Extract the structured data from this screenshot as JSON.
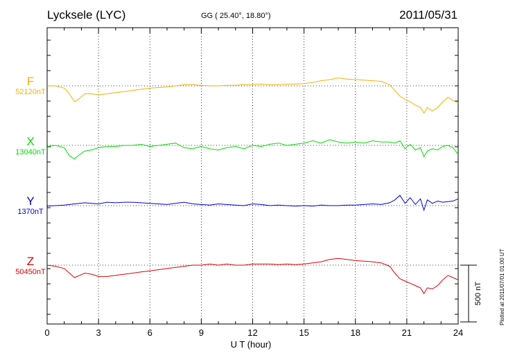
{
  "header": {
    "station": "Lycksele (LYC)",
    "coords": "GG ( 25.40°,  18.80°)",
    "date": "2011/05/31"
  },
  "footer": {
    "plotted": "Plotted at 2011/07/01 01:00 UT"
  },
  "chart_data": {
    "type": "line",
    "xlabel": "U T (hour)",
    "xlim": [
      0,
      24
    ],
    "xticks": [
      0,
      3,
      6,
      9,
      12,
      15,
      18,
      21,
      24
    ],
    "scale_bar_label": "500 nT",
    "scale_bar_nT": 500,
    "grid": true,
    "series": [
      {
        "name": "F",
        "baseline_label": "52120nT",
        "baseline_nT": 52120,
        "color": "#f5b000",
        "x": [
          0,
          0.5,
          1,
          1.3,
          1.6,
          1.9,
          2.2,
          2.6,
          3,
          3.5,
          4,
          4.5,
          5,
          5.5,
          6,
          6.5,
          7,
          7.5,
          8,
          8.5,
          9,
          9.5,
          10,
          10.5,
          11,
          11.5,
          12,
          12.5,
          13,
          13.5,
          14,
          14.5,
          15,
          15.5,
          16,
          16.5,
          17,
          17.5,
          18,
          18.5,
          19,
          19.5,
          20,
          20.3,
          20.6,
          20.9,
          21.2,
          21.5,
          21.8,
          22,
          22.2,
          22.5,
          22.8,
          23.1,
          23.4,
          23.7,
          24
        ],
        "y": [
          52120,
          52120,
          52100,
          52050,
          51980,
          52010,
          52050,
          52050,
          52040,
          52050,
          52060,
          52070,
          52080,
          52090,
          52100,
          52105,
          52110,
          52120,
          52130,
          52130,
          52125,
          52120,
          52120,
          52125,
          52125,
          52130,
          52130,
          52135,
          52130,
          52130,
          52135,
          52135,
          52140,
          52150,
          52165,
          52175,
          52190,
          52180,
          52175,
          52170,
          52165,
          52160,
          52130,
          52080,
          52030,
          52000,
          51980,
          51950,
          51930,
          51880,
          51930,
          51900,
          51930,
          51980,
          52020,
          51990,
          51970
        ]
      },
      {
        "name": "X",
        "baseline_label": "13040nT",
        "baseline_nT": 13040,
        "color": "#00dd00",
        "x": [
          0,
          0.5,
          1,
          1.3,
          1.6,
          1.9,
          2.2,
          2.6,
          3,
          3.5,
          4,
          4.5,
          5,
          5.5,
          6,
          6.5,
          7,
          7.5,
          8,
          8.5,
          9,
          9.5,
          10,
          10.5,
          11,
          11.5,
          12,
          12.5,
          13,
          13.5,
          14,
          14.5,
          15,
          15.5,
          16,
          16.5,
          17,
          17.5,
          18,
          18.5,
          19,
          19.5,
          20,
          20.3,
          20.6,
          20.9,
          21.2,
          21.5,
          21.8,
          22,
          22.2,
          22.5,
          22.8,
          23.1,
          23.4,
          23.7,
          24
        ],
        "y": [
          13030,
          13040,
          13020,
          12950,
          12920,
          12960,
          12990,
          13000,
          13020,
          13030,
          13030,
          13040,
          13040,
          13050,
          13030,
          13040,
          13050,
          13060,
          13020,
          13010,
          13030,
          13010,
          13000,
          13020,
          13030,
          13010,
          13040,
          13030,
          13050,
          13060,
          13040,
          13050,
          13060,
          13080,
          13060,
          13090,
          13070,
          13060,
          13070,
          13060,
          13080,
          13070,
          13070,
          13060,
          13080,
          13010,
          13050,
          13000,
          13020,
          12940,
          12990,
          13010,
          13000,
          13030,
          13040,
          13020,
          12960
        ]
      },
      {
        "name": "Y",
        "baseline_label": "1370nT",
        "baseline_nT": 1370,
        "color": "#0000cc",
        "x": [
          0,
          0.5,
          1,
          1.3,
          1.6,
          1.9,
          2.2,
          2.6,
          3,
          3.5,
          4,
          4.5,
          5,
          5.5,
          6,
          6.5,
          7,
          7.5,
          8,
          8.5,
          9,
          9.5,
          10,
          10.5,
          11,
          11.5,
          12,
          12.5,
          13,
          13.5,
          14,
          14.5,
          15,
          15.5,
          16,
          16.5,
          17,
          17.5,
          18,
          18.5,
          19,
          19.5,
          20,
          20.3,
          20.6,
          20.9,
          21.2,
          21.5,
          21.8,
          22,
          22.2,
          22.5,
          22.8,
          23.1,
          23.4,
          23.7,
          24
        ],
        "y": [
          1365,
          1370,
          1375,
          1380,
          1385,
          1390,
          1395,
          1390,
          1385,
          1400,
          1395,
          1400,
          1400,
          1395,
          1390,
          1385,
          1380,
          1390,
          1400,
          1385,
          1380,
          1375,
          1385,
          1380,
          1375,
          1370,
          1385,
          1380,
          1370,
          1375,
          1370,
          1365,
          1370,
          1365,
          1375,
          1370,
          1370,
          1375,
          1375,
          1380,
          1385,
          1380,
          1395,
          1420,
          1460,
          1390,
          1440,
          1380,
          1430,
          1330,
          1420,
          1390,
          1410,
          1400,
          1405,
          1410,
          1430
        ]
      },
      {
        "name": "Z",
        "baseline_label": "50450nT",
        "baseline_nT": 50450,
        "color": "#dd0000",
        "x": [
          0,
          0.5,
          1,
          1.3,
          1.6,
          1.9,
          2.2,
          2.6,
          3,
          3.5,
          4,
          4.5,
          5,
          5.5,
          6,
          6.5,
          7,
          7.5,
          8,
          8.5,
          9,
          9.5,
          10,
          10.5,
          11,
          11.5,
          12,
          12.5,
          13,
          13.5,
          14,
          14.5,
          15,
          15.5,
          16,
          16.5,
          17,
          17.5,
          18,
          18.5,
          19,
          19.5,
          20,
          20.3,
          20.6,
          20.9,
          21.2,
          21.5,
          21.8,
          22,
          22.2,
          22.5,
          22.8,
          23.1,
          23.4,
          23.7,
          24
        ],
        "y": [
          50450,
          50440,
          50420,
          50380,
          50340,
          50360,
          50380,
          50370,
          50350,
          50350,
          50360,
          50370,
          50380,
          50390,
          50400,
          50410,
          50420,
          50430,
          50440,
          50450,
          50450,
          50460,
          50450,
          50460,
          50450,
          50450,
          50460,
          50460,
          50460,
          50455,
          50460,
          50455,
          50460,
          50470,
          50480,
          50500,
          50510,
          50500,
          50490,
          50485,
          50480,
          50470,
          50440,
          50380,
          50330,
          50310,
          50290,
          50270,
          50250,
          50200,
          50250,
          50240,
          50270,
          50320,
          50360,
          50340,
          50320
        ]
      }
    ]
  }
}
